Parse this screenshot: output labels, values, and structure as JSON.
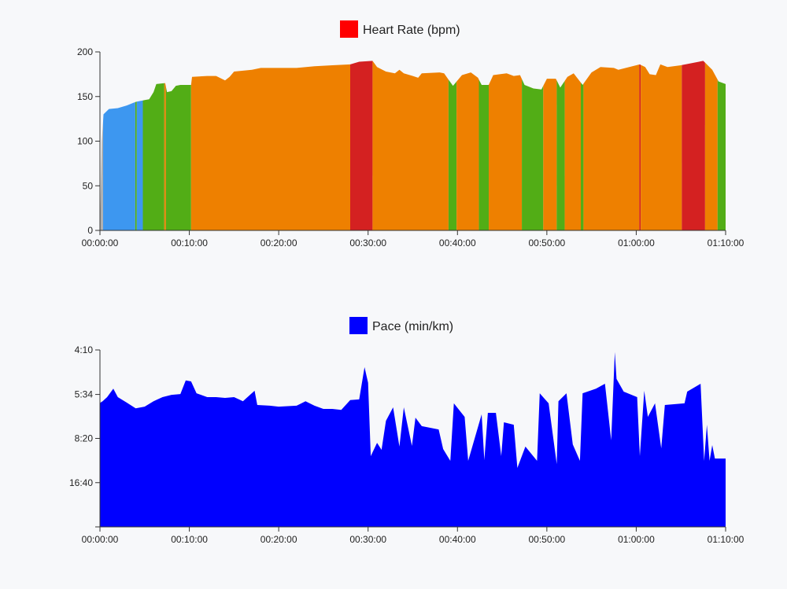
{
  "chart_data": [
    {
      "type": "area",
      "legend": {
        "label": "Heart Rate (bpm)",
        "color": "#ff0000",
        "placement": "top-center"
      },
      "x_unit": "elapsed time (minutes)",
      "xlim": [
        0,
        70
      ],
      "ylim": [
        0,
        200
      ],
      "xticks": [
        "00:00:00",
        "00:10:00",
        "00:20:00",
        "00:30:00",
        "00:40:00",
        "00:50:00",
        "01:00:00",
        "01:10:00"
      ],
      "yticks": [
        "0",
        "50",
        "100",
        "150",
        "200"
      ],
      "grid": false,
      "zone_colors": {
        "gray": "#b0b0b0",
        "blue": "#3d97f0",
        "green": "#52ad16",
        "orange": "#ee8000",
        "red": "#d42121"
      },
      "zones": [
        {
          "from": 0,
          "to": 0.35,
          "zone": "gray"
        },
        {
          "from": 0.35,
          "to": 3.95,
          "zone": "blue"
        },
        {
          "from": 3.95,
          "to": 4.12,
          "zone": "green"
        },
        {
          "from": 4.12,
          "to": 4.8,
          "zone": "blue"
        },
        {
          "from": 4.8,
          "to": 7.2,
          "zone": "green"
        },
        {
          "from": 7.2,
          "to": 7.38,
          "zone": "orange"
        },
        {
          "from": 7.38,
          "to": 10.2,
          "zone": "green"
        },
        {
          "from": 10.2,
          "to": 28.0,
          "zone": "orange"
        },
        {
          "from": 28.0,
          "to": 30.5,
          "zone": "red"
        },
        {
          "from": 30.5,
          "to": 39.0,
          "zone": "orange"
        },
        {
          "from": 39.0,
          "to": 39.9,
          "zone": "green"
        },
        {
          "from": 39.9,
          "to": 42.4,
          "zone": "orange"
        },
        {
          "from": 42.4,
          "to": 43.5,
          "zone": "green"
        },
        {
          "from": 43.5,
          "to": 47.2,
          "zone": "orange"
        },
        {
          "from": 47.2,
          "to": 49.6,
          "zone": "green"
        },
        {
          "from": 49.6,
          "to": 51.1,
          "zone": "orange"
        },
        {
          "from": 51.1,
          "to": 52.0,
          "zone": "green"
        },
        {
          "from": 52.0,
          "to": 53.8,
          "zone": "orange"
        },
        {
          "from": 53.8,
          "to": 54.1,
          "zone": "green"
        },
        {
          "from": 54.1,
          "to": 60.35,
          "zone": "orange"
        },
        {
          "from": 60.35,
          "to": 60.5,
          "zone": "red"
        },
        {
          "from": 60.5,
          "to": 65.1,
          "zone": "orange"
        },
        {
          "from": 65.1,
          "to": 67.7,
          "zone": "red"
        },
        {
          "from": 67.7,
          "to": 69.1,
          "zone": "orange"
        },
        {
          "from": 69.1,
          "to": 70,
          "zone": "green"
        }
      ],
      "points": [
        [
          0,
          0
        ],
        [
          0.2,
          100
        ],
        [
          0.4,
          130
        ],
        [
          1,
          136
        ],
        [
          2,
          137
        ],
        [
          3,
          140
        ],
        [
          4,
          144
        ],
        [
          5,
          146
        ],
        [
          5.5,
          147
        ],
        [
          6,
          155
        ],
        [
          6.3,
          164
        ],
        [
          7.3,
          165
        ],
        [
          7.5,
          155
        ],
        [
          8,
          156
        ],
        [
          8.5,
          162
        ],
        [
          9,
          163
        ],
        [
          10.2,
          163
        ],
        [
          10.3,
          172
        ],
        [
          12,
          173
        ],
        [
          13,
          173
        ],
        [
          14,
          168
        ],
        [
          14.5,
          172
        ],
        [
          15,
          178
        ],
        [
          17,
          180
        ],
        [
          18,
          182
        ],
        [
          20,
          182
        ],
        [
          22,
          182
        ],
        [
          24,
          184
        ],
        [
          26,
          185
        ],
        [
          28,
          186
        ],
        [
          29,
          189
        ],
        [
          30.5,
          190
        ],
        [
          31,
          183
        ],
        [
          32,
          178
        ],
        [
          33,
          176
        ],
        [
          33.5,
          180
        ],
        [
          34,
          176
        ],
        [
          35,
          173
        ],
        [
          35.6,
          171
        ],
        [
          36,
          176
        ],
        [
          38,
          177
        ],
        [
          38.5,
          176
        ],
        [
          39.5,
          162
        ],
        [
          40.5,
          174
        ],
        [
          41.5,
          177
        ],
        [
          42.3,
          171
        ],
        [
          42.7,
          163
        ],
        [
          43.5,
          163
        ],
        [
          44,
          174
        ],
        [
          45.5,
          176
        ],
        [
          46.3,
          173
        ],
        [
          47,
          174
        ],
        [
          47.5,
          163
        ],
        [
          48.5,
          159
        ],
        [
          49.4,
          158
        ],
        [
          50,
          170
        ],
        [
          51,
          170
        ],
        [
          51.5,
          160
        ],
        [
          52.3,
          172
        ],
        [
          53,
          176
        ],
        [
          54,
          163
        ],
        [
          55,
          177
        ],
        [
          56,
          183
        ],
        [
          57.5,
          182
        ],
        [
          58,
          180
        ],
        [
          60.4,
          186
        ],
        [
          61,
          183
        ],
        [
          61.5,
          175
        ],
        [
          62.2,
          174
        ],
        [
          62.7,
          186
        ],
        [
          63.5,
          183
        ],
        [
          65,
          185
        ],
        [
          66.5,
          188
        ],
        [
          67.5,
          190
        ],
        [
          68.5,
          180
        ],
        [
          69.2,
          167
        ],
        [
          70,
          164
        ]
      ]
    },
    {
      "type": "area",
      "legend": {
        "label": "Pace (min/km)",
        "color": "#0000ff",
        "placement": "top-center"
      },
      "x_unit": "elapsed time (minutes)",
      "y_scale": "reciprocal (speed-linear)",
      "xlim": [
        0,
        70
      ],
      "xticks": [
        "00:00:00",
        "00:10:00",
        "00:20:00",
        "00:30:00",
        "00:40:00",
        "00:50:00",
        "01:00:00",
        "01:10:00"
      ],
      "yticks": [
        "4:10",
        "5:34",
        "8:20",
        "16:40"
      ],
      "grid": false,
      "color": "#0000ff",
      "points": [
        [
          0,
          "6:20"
        ],
        [
          0.05,
          "5:56"
        ],
        [
          0.3,
          "5:52"
        ],
        [
          0.8,
          "5:41"
        ],
        [
          1.5,
          "5:20"
        ],
        [
          2,
          "5:41"
        ],
        [
          3,
          "5:56"
        ],
        [
          4,
          "6:13"
        ],
        [
          5,
          "6:08"
        ],
        [
          6,
          "5:52"
        ],
        [
          7,
          "5:41"
        ],
        [
          8,
          "5:35"
        ],
        [
          9,
          "5:33"
        ],
        [
          9.6,
          "5:02"
        ],
        [
          10.2,
          "5:04"
        ],
        [
          10.8,
          "5:31"
        ],
        [
          12,
          "5:41"
        ],
        [
          13,
          "5:41"
        ],
        [
          14,
          "5:43"
        ],
        [
          15,
          "5:41"
        ],
        [
          16,
          "5:52"
        ],
        [
          17.3,
          "5:25"
        ],
        [
          17.6,
          "6:03"
        ],
        [
          19,
          "6:05"
        ],
        [
          20,
          "6:08"
        ],
        [
          22,
          "6:05"
        ],
        [
          23,
          "5:52"
        ],
        [
          24,
          "6:05"
        ],
        [
          25,
          "6:15"
        ],
        [
          26,
          "6:15"
        ],
        [
          27,
          "6:18"
        ],
        [
          28,
          "5:49"
        ],
        [
          29,
          "5:47"
        ],
        [
          29.6,
          "4:37"
        ],
        [
          30,
          "5:07"
        ],
        [
          30.3,
          "10:25"
        ],
        [
          31,
          "8:46"
        ],
        [
          31.5,
          "9:34"
        ],
        [
          32,
          "6:57"
        ],
        [
          32.8,
          "6:10"
        ],
        [
          33.5,
          "9:11"
        ],
        [
          34,
          "6:10"
        ],
        [
          34.9,
          "9:06"
        ],
        [
          35.3,
          "6:45"
        ],
        [
          36,
          "7:19"
        ],
        [
          37.9,
          "7:34"
        ],
        [
          38.4,
          "9:28"
        ],
        [
          39.2,
          "11:10"
        ],
        [
          39.6,
          "5:58"
        ],
        [
          40.8,
          "6:42"
        ],
        [
          41.2,
          "11:10"
        ],
        [
          42.7,
          "6:33"
        ],
        [
          43.0,
          "11:02"
        ],
        [
          43.4,
          "6:28"
        ],
        [
          44.3,
          "6:28"
        ],
        [
          44.9,
          "10:25"
        ],
        [
          45.2,
          "7:03"
        ],
        [
          46.3,
          "7:13"
        ],
        [
          46.7,
          "12:30"
        ],
        [
          47.6,
          "9:11"
        ],
        [
          48.9,
          "11:10"
        ],
        [
          49.2,
          "5:31"
        ],
        [
          50.2,
          "5:58"
        ],
        [
          51.1,
          "11:43"
        ],
        [
          51.3,
          "5:52"
        ],
        [
          52.2,
          "5:31"
        ],
        [
          52.9,
          "8:56"
        ],
        [
          53.7,
          "11:10"
        ],
        [
          54.0,
          "5:31"
        ],
        [
          55.5,
          "5:20"
        ],
        [
          56.5,
          "5:09"
        ],
        [
          57.2,
          "8:31"
        ],
        [
          57.6,
          "4:13"
        ],
        [
          57.8,
          "4:59"
        ],
        [
          58.6,
          "5:27"
        ],
        [
          60.1,
          "5:41"
        ],
        [
          60.4,
          "10:25"
        ],
        [
          60.9,
          "5:25"
        ],
        [
          61.3,
          "6:42"
        ],
        [
          62.1,
          "5:58"
        ],
        [
          62.8,
          "9:23"
        ],
        [
          63.2,
          "6:03"
        ],
        [
          65.4,
          "5:58"
        ],
        [
          65.7,
          "5:27"
        ],
        [
          67.2,
          "5:09"
        ],
        [
          67.6,
          "11:10"
        ],
        [
          67.9,
          "7:13"
        ],
        [
          68.2,
          "11:10"
        ],
        [
          68.5,
          "9:01"
        ],
        [
          68.8,
          "10:47"
        ],
        [
          70,
          "10:47"
        ]
      ]
    }
  ]
}
